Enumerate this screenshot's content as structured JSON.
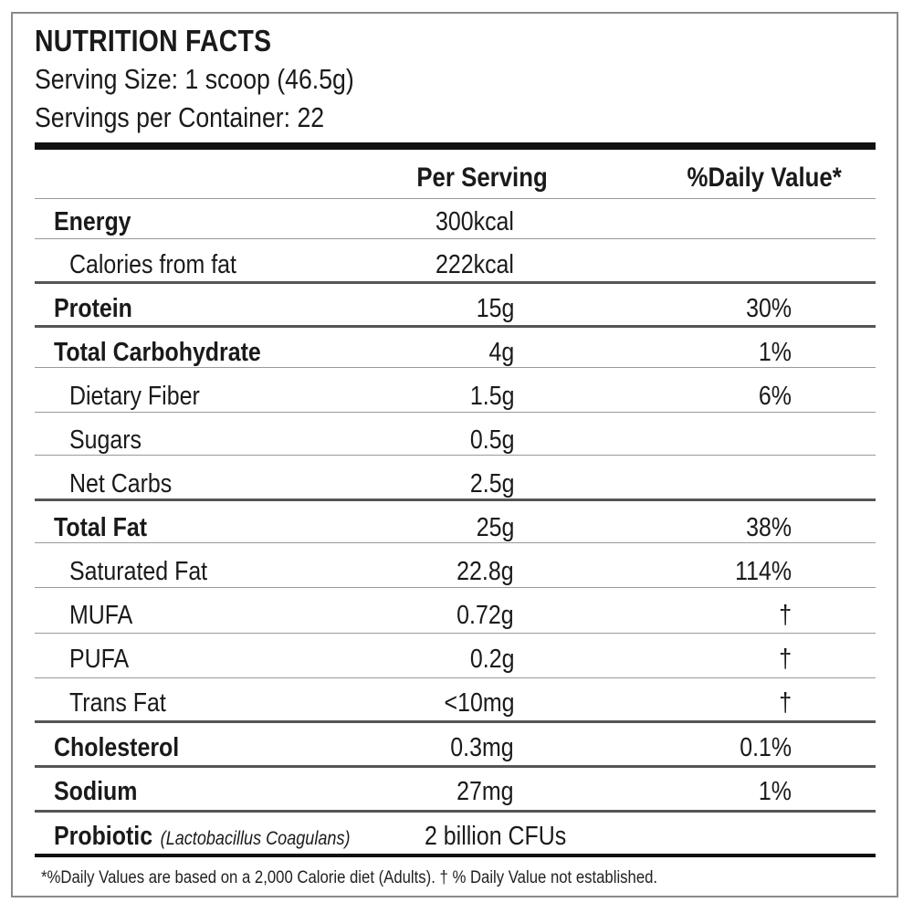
{
  "label": {
    "title": "NUTRITION FACTS",
    "serving_size": "Serving Size: 1 scoop (46.5g)",
    "servings_per_container": "Servings per Container: 22"
  },
  "columns": {
    "per_serving": "Per Serving",
    "daily_value": "%Daily Value*"
  },
  "rows": [
    {
      "name": "Energy",
      "amount": "300kcal",
      "dv": ""
    },
    {
      "name": "Calories from fat",
      "amount": "222kcal",
      "dv": ""
    },
    {
      "name": "Protein",
      "amount": "15g",
      "dv": "30%"
    },
    {
      "name": "Total Carbohydrate",
      "amount": "4g",
      "dv": "1%"
    },
    {
      "name": "Dietary Fiber",
      "amount": "1.5g",
      "dv": "6%"
    },
    {
      "name": "Sugars",
      "amount": "0.5g",
      "dv": ""
    },
    {
      "name": "Net Carbs",
      "amount": "2.5g",
      "dv": ""
    },
    {
      "name": "Total Fat",
      "amount": "25g",
      "dv": "38%"
    },
    {
      "name": "Saturated Fat",
      "amount": "22.8g",
      "dv": "114%"
    },
    {
      "name": "MUFA",
      "amount": "0.72g",
      "dv": "†"
    },
    {
      "name": "PUFA",
      "amount": "0.2g",
      "dv": "†"
    },
    {
      "name": "Trans Fat",
      "amount": "<10mg",
      "dv": "†"
    },
    {
      "name": "Cholesterol",
      "amount": "0.3mg",
      "dv": "0.1%"
    },
    {
      "name": "Sodium",
      "amount": "27mg",
      "dv": "1%"
    }
  ],
  "probiotic": {
    "name": "Probiotic",
    "strain": "(Lactobacillus Coagulans)",
    "amount": "2 billion CFUs"
  },
  "footnote": "*%Daily Values are based on a 2,000 Calorie diet (Adults). † % Daily Value not established."
}
